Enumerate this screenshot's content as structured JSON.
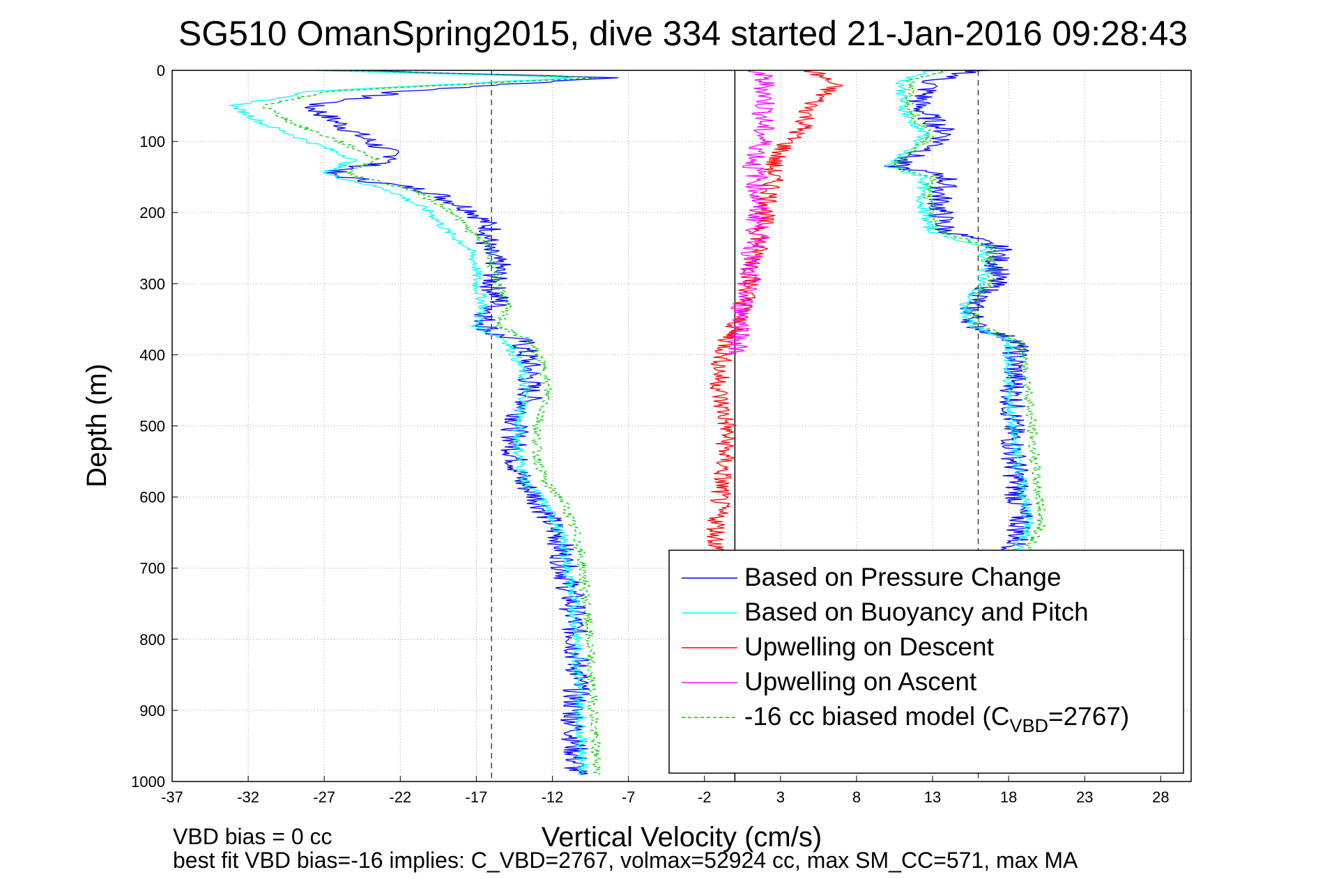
{
  "chart_data": {
    "type": "line",
    "title": "SG510 OmanSpring2015, dive 334 started 21-Jan-2016 09:28:43",
    "xlabel": "Vertical Velocity (cm/s)",
    "ylabel": "Depth (m)",
    "xlim": [
      -37,
      30
    ],
    "ylim": [
      1000,
      0
    ],
    "y_reversed": true,
    "grid": true,
    "xticks": [
      "-37",
      "-32",
      "-27",
      "-22",
      "-17",
      "-12",
      "-7",
      "-2",
      "3",
      "8",
      "13",
      "18",
      "23",
      "28"
    ],
    "yticks": [
      "0",
      "100",
      "200",
      "300",
      "400",
      "500",
      "600",
      "700",
      "800",
      "900",
      "1000"
    ],
    "reference_lines": [
      {
        "x": -16,
        "style": "dashed",
        "color": "#404040"
      },
      {
        "x": 0,
        "style": "solid",
        "color": "#000000"
      },
      {
        "x": 16,
        "style": "dashed",
        "color": "#404040"
      }
    ],
    "legend_position": "bottom-right",
    "legend": [
      {
        "label": "Based on Pressure Change",
        "color": "#0000ff",
        "dash": "solid"
      },
      {
        "label": "Based on Buoyancy and Pitch",
        "color": "#00ffff",
        "dash": "solid"
      },
      {
        "label": "Upwelling on Descent",
        "color": "#ff0000",
        "dash": "solid"
      },
      {
        "label": "Upwelling on Ascent",
        "color": "#ff00ff",
        "dash": "solid"
      },
      {
        "label_prefix": "-16 cc biased model (C",
        "label_sub": "VBD",
        "label_suffix": "=2767)",
        "color": "#00cc00",
        "dash": "dashed"
      }
    ],
    "series": [
      {
        "name": "Based on Pressure Change",
        "color": "#0000ff",
        "dash": "",
        "segments": [
          {
            "depth": [
              0,
              10,
              30,
              50,
              75,
              100,
              125,
              145,
              170,
              200,
              225,
              250,
              275,
              300,
              325,
              350,
              370,
              380,
              420,
              460,
              500,
              540,
              580,
              600,
              620,
              660,
              700,
              750,
              800,
              850,
              900,
              950,
              990
            ],
            "v": [
              -25,
              -8,
              -22,
              -28,
              -26,
              -24,
              -22,
              -27,
              -20,
              -17,
              -16,
              -16.5,
              -15.5,
              -16,
              -15.5,
              -16.5,
              -16,
              -14,
              -13.5,
              -13.5,
              -14.5,
              -14.5,
              -14,
              -13,
              -12.5,
              -11.5,
              -11.2,
              -10.7,
              -10.5,
              -10.3,
              -10.6,
              -10.5,
              -10.5
            ],
            "noise": 0.9
          },
          {
            "depth": [
              0,
              15,
              50,
              70,
              90,
              110,
              125,
              135,
              150,
              175,
              200,
              225,
              250,
              265,
              280,
              300,
              330,
              360,
              380,
              450,
              500,
              550,
              600,
              640,
              680
            ],
            "v": [
              16,
              13,
              12,
              13,
              14,
              13,
              11,
              10.5,
              14,
              13.5,
              13.5,
              13.8,
              17.5,
              17.2,
              17.3,
              17,
              15.5,
              15.8,
              18.5,
              18.3,
              18.2,
              18.4,
              18.6,
              18.8,
              18.3
            ],
            "noise": 0.9
          }
        ]
      },
      {
        "name": "Based on Buoyancy and Pitch",
        "color": "#00ffff",
        "dash": "",
        "segments": [
          {
            "depth": [
              0,
              10,
              30,
              50,
              75,
              100,
              125,
              145,
              170,
              200,
              225,
              250,
              275,
              300,
              330,
              360,
              380,
              420,
              460,
              500,
              540,
              580,
              600,
              620,
              660,
              700,
              750,
              800,
              850,
              900,
              950,
              990
            ],
            "v": [
              -28,
              -10,
              -28,
              -33,
              -31,
              -28,
              -25,
              -27,
              -22.5,
              -20,
              -19,
              -17.5,
              -17,
              -17,
              -16.5,
              -17,
              -15,
              -14,
              -13.8,
              -14.3,
              -14.2,
              -13.8,
              -12.8,
              -12.2,
              -11.3,
              -11,
              -10.6,
              -10.4,
              -10.3,
              -10.2,
              -10.1,
              -10
            ],
            "noise": 0.4
          },
          {
            "depth": [
              0,
              15,
              50,
              70,
              90,
              110,
              125,
              135,
              150,
              175,
              200,
              225,
              250,
              265,
              280,
              300,
              330,
              360,
              380,
              450,
              500,
              550,
              600,
              640,
              680
            ],
            "v": [
              13,
              11,
              11,
              11.5,
              12.5,
              11.5,
              10.5,
              10,
              12.5,
              12.2,
              12.5,
              12.8,
              16.5,
              16.3,
              16.5,
              16.2,
              15,
              15.5,
              18,
              18,
              18.2,
              18.6,
              19,
              19.3,
              18.5
            ],
            "noise": 0.4
          }
        ]
      },
      {
        "name": "Upwelling on Descent",
        "color": "#ff0000",
        "dash": "",
        "segments": [
          {
            "depth": [
              0,
              20,
              50,
              80,
              100,
              130,
              160,
              200,
              250,
              300,
              340,
              380,
              420,
              460,
              500,
              550,
              600,
              650,
              700
            ],
            "v": [
              5,
              6.5,
              5,
              4.5,
              3.5,
              2.5,
              2.5,
              2,
              1.5,
              1,
              0.5,
              -0.5,
              -1,
              -1,
              -0.5,
              -0.7,
              -1,
              -1.2,
              -1.2
            ],
            "noise": 0.7
          }
        ]
      },
      {
        "name": "Upwelling on Ascent",
        "color": "#ff00ff",
        "dash": "",
        "segments": [
          {
            "depth": [
              0,
              20,
              50,
              80,
              100,
              120,
              135,
              150,
              170,
              200,
              240,
              280,
              300,
              330,
              360,
              400
            ],
            "v": [
              1.5,
              2,
              2,
              1.8,
              1.8,
              1.5,
              1.2,
              1.5,
              1.5,
              1.5,
              1.5,
              0.8,
              0.8,
              0.5,
              0.5,
              0
            ],
            "noise": 0.8
          }
        ]
      },
      {
        "name": "-16 cc biased model (CVBD=2767)",
        "color": "#00cc00",
        "dash": "5,4",
        "segments": [
          {
            "depth": [
              0,
              10,
              30,
              50,
              75,
              100,
              125,
              145,
              170,
              200,
              225,
              250,
              275,
              300,
              330,
              360,
              380,
              420,
              460,
              500,
              540,
              580,
              600,
              620,
              660,
              700,
              750,
              800,
              850,
              900,
              950,
              990
            ],
            "v": [
              -26,
              -9,
              -27,
              -31,
              -29,
              -26,
              -23.5,
              -25.5,
              -21,
              -18.5,
              -17.5,
              -16,
              -16,
              -15.5,
              -15,
              -15.5,
              -13.5,
              -12.5,
              -12.3,
              -13,
              -13,
              -12.5,
              -11.5,
              -11,
              -10.3,
              -10,
              -9.8,
              -9.6,
              -9.5,
              -9.3,
              -9.2,
              -9
            ],
            "noise": 0.35
          },
          {
            "depth": [
              0,
              15,
              50,
              70,
              90,
              110,
              125,
              135,
              150,
              175,
              200,
              225,
              250,
              265,
              280,
              300,
              330,
              360,
              380,
              450,
              500,
              550,
              600,
              640,
              680
            ],
            "v": [
              14,
              11.5,
              11.5,
              12,
              13,
              12,
              11,
              10.5,
              13,
              12.7,
              13,
              13.3,
              17,
              16.8,
              17,
              16.7,
              15.5,
              16,
              18.8,
              19.3,
              19.5,
              19.7,
              20,
              20.2,
              19
            ],
            "noise": 0.35
          }
        ]
      }
    ]
  },
  "notes": {
    "line1": "VBD bias = 0 cc",
    "line2": "best fit VBD bias=-16 implies: C_VBD=2767, volmax=52924 cc, max SM_CC=571, max MA"
  }
}
